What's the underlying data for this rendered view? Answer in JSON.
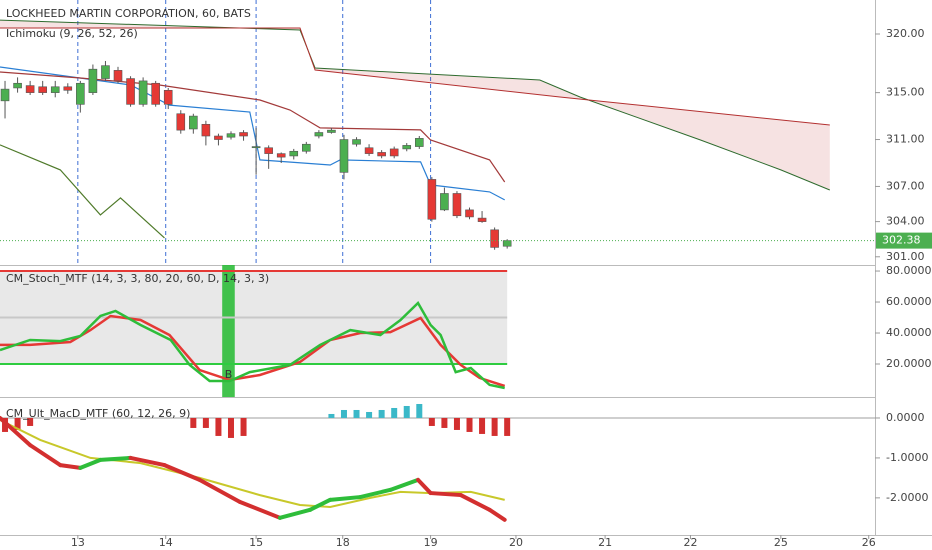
{
  "chart_data": [
    {
      "type": "candlestick",
      "title": "LOCKHEED MARTIN CORPORATION, 60, BATS",
      "subtitle": "Ichimoku (9, 26, 52, 26)",
      "xlim": [
        -0.4,
        69.3
      ],
      "ylim": [
        300.3,
        322.9
      ],
      "yticks": [
        {
          "value": 301,
          "label": "301.00"
        },
        {
          "value": 304,
          "label": "304.00"
        },
        {
          "value": 307,
          "label": "307.00"
        },
        {
          "value": 311,
          "label": "311.00"
        },
        {
          "value": 315,
          "label": "315.00"
        },
        {
          "value": 320,
          "label": "320.00"
        }
      ],
      "up_color": "#4caf50",
      "down_color": "#e53935",
      "x": [
        0,
        1,
        2,
        3,
        4,
        5,
        6,
        7,
        8,
        9,
        10,
        11,
        12,
        13,
        14,
        15,
        16,
        17,
        18,
        19,
        20,
        21,
        22,
        23,
        24,
        25,
        26,
        27,
        28,
        29,
        30,
        31,
        32,
        33,
        34,
        35,
        36,
        37,
        38,
        39,
        40
      ],
      "open": [
        314.3,
        315.4,
        315.6,
        315.5,
        315.0,
        315.5,
        314.0,
        315.0,
        316.2,
        316.9,
        316.2,
        314.0,
        315.8,
        315.2,
        313.2,
        311.9,
        312.3,
        311.3,
        311.2,
        311.6,
        310.3,
        310.3,
        309.8,
        309.6,
        310.0,
        311.3,
        311.6,
        308.2,
        310.6,
        310.3,
        309.9,
        310.2,
        310.2,
        310.4,
        307.6,
        305.0,
        306.4,
        305.0,
        304.3,
        303.3,
        301.9
      ],
      "high": [
        316,
        316.3,
        316,
        316,
        316,
        315.8,
        316,
        317.4,
        317.7,
        317.2,
        316.4,
        316.3,
        316,
        315.4,
        313.5,
        313.2,
        312.6,
        311.5,
        311.7,
        311.8,
        312,
        310.5,
        309.9,
        310.2,
        310.8,
        311.8,
        312,
        311.4,
        311.2,
        310.6,
        310.1,
        310.4,
        310.7,
        311.3,
        307.8,
        306.9,
        306.6,
        305.2,
        304.9,
        303.5,
        302.5
      ],
      "low": [
        312.8,
        315,
        314.8,
        314.8,
        314.6,
        314.9,
        313.3,
        314.8,
        316,
        315.8,
        313.8,
        313.8,
        313.8,
        313.6,
        311.5,
        311.5,
        310.5,
        310.5,
        311,
        310.9,
        308,
        308.5,
        309,
        309.3,
        309.8,
        311.1,
        311.5,
        307.6,
        310.4,
        309.6,
        309.4,
        309.4,
        310,
        310.2,
        304,
        304.9,
        304.3,
        304.2,
        303.9,
        301.6,
        301.7
      ],
      "close": [
        315.3,
        315.8,
        315.0,
        315.0,
        315.5,
        315.2,
        315.8,
        317.0,
        317.3,
        316.0,
        314.0,
        316.0,
        314.0,
        314.0,
        311.8,
        313.0,
        311.3,
        311.0,
        311.5,
        311.3,
        310.4,
        309.8,
        309.5,
        310.0,
        310.6,
        311.6,
        311.8,
        311.0,
        311.0,
        309.8,
        309.6,
        309.6,
        310.5,
        311.1,
        304.2,
        306.4,
        304.5,
        304.4,
        304.0,
        301.8,
        302.38
      ],
      "series": [
        {
          "color": "#2a7fd4",
          "x": [
            -0.4,
            10,
            13.1,
            19.5,
            20.3,
            25.9,
            26.7,
            33.1,
            33.9,
            38.6,
            39.8
          ],
          "values": [
            317.19,
            315.65,
            313.94,
            313.35,
            309.26,
            308.83,
            309.26,
            309.09,
            307.13,
            306.53,
            305.85
          ]
        },
        {
          "color": "#a33a3a",
          "x": [
            -0.4,
            6,
            12.3,
            20.3,
            22.7,
            25.1,
            33.1,
            33.9,
            38.6,
            39.8
          ],
          "values": [
            316.76,
            316.25,
            315.65,
            314.37,
            313.52,
            311.99,
            311.82,
            310.96,
            309.26,
            307.38
          ]
        },
        {
          "color": "#4f7a2a",
          "x": [
            -0.4,
            4.4,
            7.6,
            9.2,
            12.7
          ],
          "values": [
            310.54,
            308.41,
            304.57,
            306.02,
            302.61
          ]
        }
      ],
      "cloud": {
        "color": "#b71c1c",
        "span_a": {
          "color": "#2e6b2e",
          "x": [
            -0.4,
            23.5,
            24.7,
            42.6,
            45.8,
            55.4,
            61.8,
            65.7
          ],
          "values": [
            321.19,
            320.34,
            317.1,
            316.08,
            314.63,
            310.96,
            308.41,
            306.7
          ]
        },
        "span_b": {
          "color": "#b33030",
          "x": [
            -0.4,
            23.5,
            24.7,
            44.2,
            65.7
          ],
          "values": [
            320.51,
            320.51,
            316.93,
            314.63,
            312.24
          ]
        }
      },
      "last_price": 302.38,
      "last_price_color": "#4caf50",
      "session_breaks": true
    },
    {
      "type": "line",
      "title": "CM_Stoch_MTF (14, 3, 3, 80, 20, 60, D, 14, 3, 3)",
      "xlim": [
        -0.4,
        69.3
      ],
      "ylim": [
        -1.3,
        83.9
      ],
      "yticks": [
        {
          "value": 20,
          "label": "20.0000"
        },
        {
          "value": 40,
          "label": "40.0000"
        },
        {
          "value": 60,
          "label": "60.0000"
        },
        {
          "value": 80,
          "label": "80.0000"
        }
      ],
      "band": {
        "x": [
          -0.4,
          40
        ],
        "from": 20,
        "to": 80,
        "color": "#808080"
      },
      "hlines": [
        {
          "value": 80,
          "color": "#e53935"
        },
        {
          "value": 50,
          "color": "#c8c8c8"
        },
        {
          "value": 20,
          "color": "#2ecc40"
        }
      ],
      "highlight": {
        "x": [
          17.3,
          18.3
        ],
        "label": "B",
        "color": "#2ebd3a"
      },
      "series": [
        {
          "color": "#e53935",
          "x": [
            -0.4,
            2,
            5.2,
            6.8,
            8.4,
            10.8,
            13.1,
            15.5,
            17.9,
            20.3,
            23.5,
            25.9,
            28.3,
            30.7,
            33.1,
            34.7,
            36.3,
            37.8,
            39.8
          ],
          "values": [
            32.3,
            32.3,
            34.2,
            41.9,
            51.0,
            48.4,
            38.7,
            16.1,
            9.7,
            12.9,
            21.3,
            35.5,
            40.0,
            40.6,
            49.7,
            32.3,
            19.4,
            11.0,
            5.8
          ]
        },
        {
          "color": "#2ebd3a",
          "x": [
            -0.4,
            2,
            4.4,
            6,
            7.6,
            8.8,
            10.8,
            13.2,
            14.7,
            16.3,
            17.9,
            19.5,
            22.7,
            25.1,
            27.5,
            29.9,
            31.5,
            32.9,
            33.9,
            34.7,
            35.9,
            37.1,
            38.6,
            39.8
          ],
          "values": [
            29.0,
            35.5,
            34.8,
            38.1,
            51.0,
            54.2,
            45.2,
            35.5,
            19.4,
            9.0,
            9.0,
            14.8,
            19.4,
            32.3,
            41.9,
            38.7,
            48.4,
            59.4,
            45.2,
            38.7,
            14.8,
            17.4,
            6.5,
            4.5
          ]
        }
      ]
    },
    {
      "type": "combo",
      "title": "CM_Ult_MacD_MTF (60, 12, 26, 9)",
      "xlim": [
        -0.4,
        69.3
      ],
      "ylim": [
        -2.93,
        0.45
      ],
      "yticks": [
        {
          "value": -2,
          "label": "-2.0000"
        },
        {
          "value": -1,
          "label": "-1.0000"
        },
        {
          "value": 0,
          "label": "0.0000"
        }
      ],
      "xticks": [
        {
          "value": 5.8,
          "label": "13"
        },
        {
          "value": 12.8,
          "label": "14"
        },
        {
          "value": 20.0,
          "label": "15"
        },
        {
          "value": 26.9,
          "label": "18"
        },
        {
          "value": 33.9,
          "label": "19"
        },
        {
          "value": 40.7,
          "label": "20"
        },
        {
          "value": 47.8,
          "label": "21"
        },
        {
          "value": 54.6,
          "label": "22"
        },
        {
          "value": 61.8,
          "label": "25"
        },
        {
          "value": 68.8,
          "label": "26"
        }
      ],
      "hlines": [
        {
          "value": 0,
          "color": "#cfcfcf"
        }
      ],
      "histogram": {
        "up_color": "#3bb8c8",
        "down_color": "#d32f2f",
        "x": [
          0,
          1,
          2,
          3,
          4,
          5,
          6,
          7,
          8,
          9,
          10,
          11,
          12,
          13,
          14,
          15,
          16,
          17,
          18,
          19,
          20,
          21,
          22,
          23,
          24,
          25,
          26,
          27,
          28,
          29,
          30,
          31,
          32,
          33,
          34,
          35,
          36,
          37,
          38,
          39,
          40
        ],
        "values": [
          -0.35,
          -0.3,
          -0.2,
          null,
          null,
          null,
          null,
          null,
          null,
          null,
          null,
          null,
          null,
          null,
          null,
          -0.25,
          -0.25,
          -0.45,
          -0.5,
          -0.45,
          null,
          null,
          null,
          null,
          null,
          null,
          0.1,
          0.2,
          0.2,
          0.15,
          0.2,
          0.25,
          0.3,
          0.35,
          -0.2,
          -0.25,
          -0.3,
          -0.35,
          -0.4,
          -0.45,
          -0.45
        ]
      },
      "macd": {
        "rise_color": "#2ebd3a",
        "fall_color": "#d32f2f",
        "x": [
          -0.4,
          2,
          4.4,
          6,
          7.6,
          10,
          12.7,
          15.5,
          18.7,
          21.9,
          24.3,
          25.9,
          28.3,
          30.7,
          32.9,
          33.9,
          36.3,
          38.6,
          39.8
        ],
        "values": [
          0,
          -0.68,
          -1.18,
          -1.25,
          -1.05,
          -1.0,
          -1.18,
          -1.55,
          -2.1,
          -2.5,
          -2.3,
          -2.05,
          -1.98,
          -1.8,
          -1.55,
          -1.88,
          -1.93,
          -2.3,
          -2.55
        ]
      },
      "signal": {
        "color": "#c8c82a",
        "x": [
          -0.4,
          2.8,
          6.8,
          10.8,
          15.5,
          20.3,
          23.5,
          25.9,
          29.1,
          31.5,
          33.9,
          37.1,
          39.8
        ],
        "values": [
          -0.05,
          -0.55,
          -1.0,
          -1.13,
          -1.5,
          -1.93,
          -2.18,
          -2.23,
          -2.0,
          -1.85,
          -1.88,
          -1.85,
          -2.05
        ]
      }
    }
  ]
}
